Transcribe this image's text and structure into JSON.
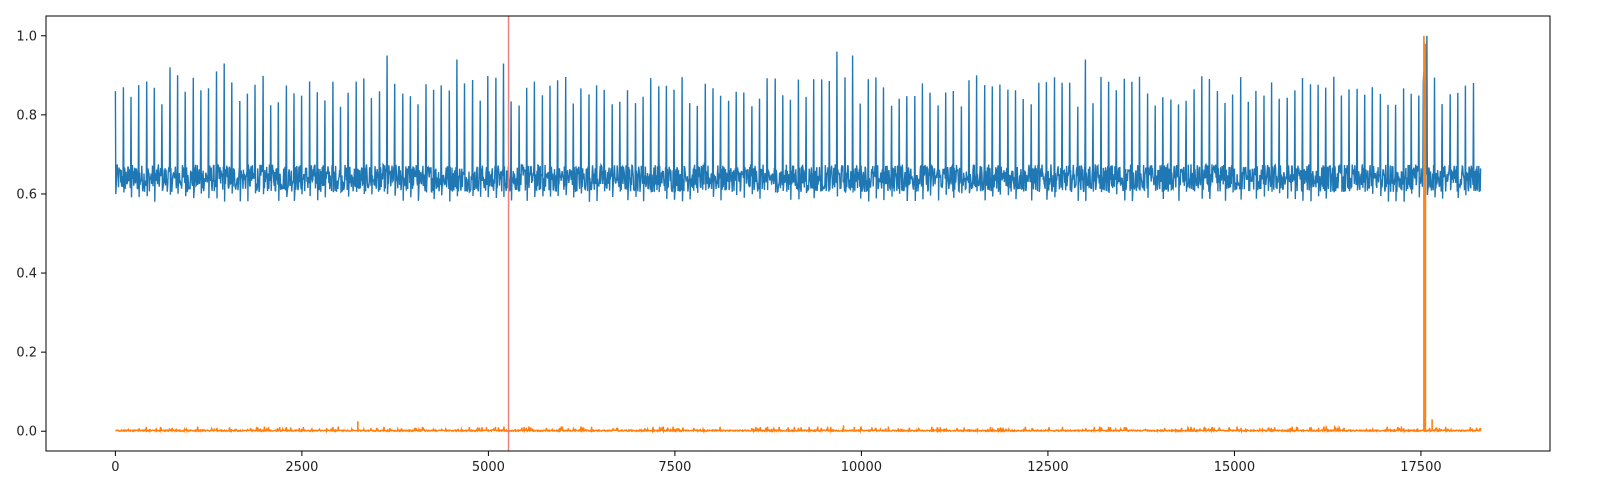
{
  "chart_data": {
    "type": "line",
    "title": "",
    "xlabel": "",
    "ylabel": "",
    "xlim": [
      -930,
      19230
    ],
    "ylim": [
      -0.05,
      1.05
    ],
    "x_ticks": [
      0,
      2500,
      5000,
      7500,
      10000,
      12500,
      15000,
      17500
    ],
    "x_tick_labels": [
      "0",
      "2500",
      "5000",
      "7500",
      "10000",
      "12500",
      "15000",
      "17500"
    ],
    "y_ticks": [
      0.0,
      0.2,
      0.4,
      0.6,
      0.8,
      1.0
    ],
    "y_tick_labels": [
      "0.0",
      "0.2",
      "0.4",
      "0.6",
      "0.8",
      "1.0"
    ],
    "grid": false,
    "legend": "none",
    "n_samples": 18300,
    "vertical_marker": {
      "x": 5270,
      "color": "#f08080"
    },
    "series": [
      {
        "color": "#1f77b4",
        "baseline": 0.64,
        "baseline_range": [
          0.58,
          0.69
        ],
        "peak_spacing": 104,
        "peak_range": [
          0.82,
          0.96
        ],
        "peaks": [
          {
            "x": 20,
            "y": 0.86
          },
          {
            "x": 100,
            "y": 0.87
          },
          {
            "x": 700,
            "y": 0.92
          },
          {
            "x": 860,
            "y": 0.9
          },
          {
            "x": 1350,
            "y": 0.91
          },
          {
            "x": 1460,
            "y": 0.93
          },
          {
            "x": 3600,
            "y": 0.95
          },
          {
            "x": 4530,
            "y": 0.94
          },
          {
            "x": 5200,
            "y": 0.93
          },
          {
            "x": 9720,
            "y": 0.96
          },
          {
            "x": 9920,
            "y": 0.95
          },
          {
            "x": 13050,
            "y": 0.94
          },
          {
            "x": 17550,
            "y": 1.0
          }
        ]
      },
      {
        "color": "#ff7f0e",
        "baseline": 0.0,
        "noise_max": 0.03,
        "spikes": [
          {
            "x": 3250,
            "y": 0.025
          },
          {
            "x": 9760,
            "y": 0.015
          },
          {
            "x": 17540,
            "y": 1.0
          },
          {
            "x": 17560,
            "y": 0.98
          },
          {
            "x": 17650,
            "y": 0.03
          }
        ]
      }
    ]
  }
}
